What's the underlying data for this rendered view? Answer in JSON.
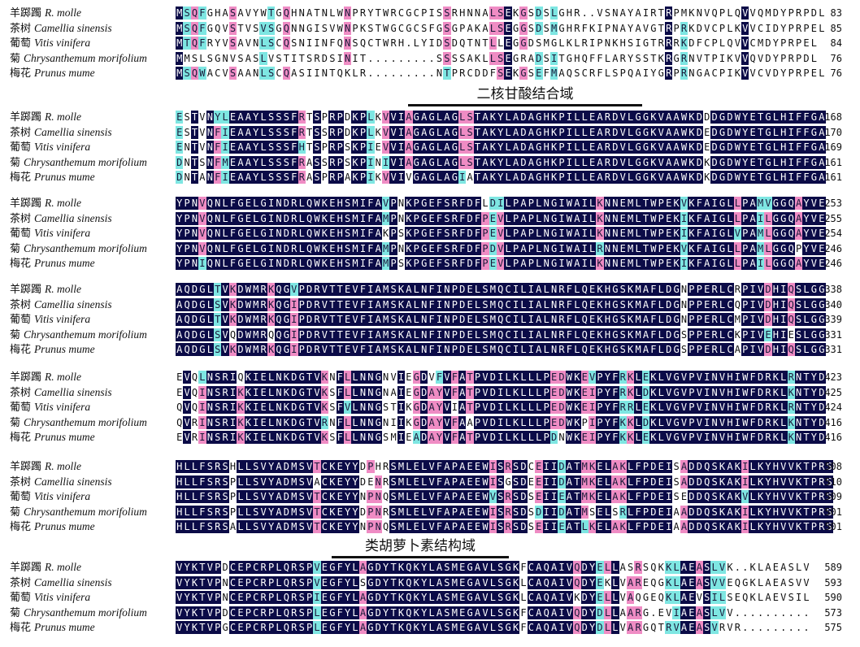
{
  "species": [
    {
      "zh": "羊踯躅",
      "latin": "R. molle"
    },
    {
      "zh": "茶树",
      "latin": "Camellia sinensis"
    },
    {
      "zh": "葡萄",
      "latin": "Vitis vinifera"
    },
    {
      "zh": "菊",
      "latin": "Chrysanthemum morifolium"
    },
    {
      "zh": "梅花",
      "latin": "Prunus mume"
    }
  ],
  "colors": {
    "identical": "#0b0b47",
    "partial": "#ef8cc4",
    "similar": "#7ee6e2"
  },
  "domains": [
    {
      "label": "二核甘酸结合域",
      "after_block": 0
    },
    {
      "label": "类胡萝卜素结构域",
      "after_block": 5
    }
  ],
  "blocks": [
    {
      "rows": [
        {
          "seq": "MSQFGHASAVYWTGQHNATNLWNPRYTWRCGCPISSRHNNALSEKGSDSLGHR..VSNAYAIRTRPMKNVQPLQVVQMDYPRPDL",
          "end": "83"
        },
        {
          "seq": "MSQFGQVSTVSVSGQNNGISVWNPKSTWGCGCSFGSGPAKALSEGGSDSMGHRFKIPNAYAVGTRPRKDVCPLKVVCIDYPRPEL",
          "end": "85"
        },
        {
          "seq": "MTQFRYVSAVNLSCQSNIINFQNSQCTWRH.LYIDSDQTNTLLEGGDSMGLKLRIPNKHSIGTRRRKDFCPLQVVCMDYPRPEL",
          "end": "84"
        },
        {
          "seq": "MMSLSGNVSASLVSTITSRDSINIT.........SSSSAKLLSEGRADSITGHQFFLARYSSTKRGRNVTPIKVVQVDYPRPDL",
          "end": "76"
        },
        {
          "seq": "MSQWACVSAANLSCQASIINTQKLR.........NTPRCDDFSEKGSEFMAQSCRFLSPQAIYGRPRNGACPIKVVCVDYPRPEL",
          "end": "76"
        }
      ]
    },
    {
      "rows": [
        {
          "seq": "ESTVNYLEAAYLSSSFRTSPRPDKPLKVVIAGAGLAGLSTAKYLADAGHKPILLEARDVLGGKVAAWKDDDGDWYETGLHIFFGA",
          "end": "168"
        },
        {
          "seq": "ESTVNFIEAAYLSSSFRTSSRPDKPLKVVIAGAGLAGLSTAKYLADAGHKPILLEARDVLGGKVAAWKDEDGDWYETGLHIFFGA",
          "end": "170"
        },
        {
          "seq": "ENTVNFIEAAYLSSSFHTSPRPSKPIEVVIAGAGLAGLSTAKYLADAGHKPILLEARDVLGGKVAAWKDEDGDWYETGLHIFFGA",
          "end": "169"
        },
        {
          "seq": "DNTSNFMEAAYLSSSFRASSRPSKPINIVIAGAGLAGLSTAKYLADAGHKPILLEARDVLGGKVAAWKDKDGDWYETGLHIFFGA",
          "end": "161"
        },
        {
          "seq": "DNTANFIEAAYLSSSFRASPRPAKPIKVVIVGAGLAGIATAKYLADAGHKPILLEARDVLGGKVAAWKDKDGDWYETGLHIFFGA",
          "end": "161"
        }
      ]
    },
    {
      "rows": [
        {
          "seq": "YPNVQNLFGELGINDRLQWKEHSMIFAVPNKPGEFSRFDFLDILPAPLNGIWAILKNNEMLTWPEKVKFAIGLLPAMVGGQAYVE",
          "end": "253"
        },
        {
          "seq": "YPNVQNLFGELGINDRLQWKEHSMIFAMPNKPGEFSRFDFPEVLPAPLNGIWAILKNNEMLTWPEKIKFAIGLLPAILGGQAYVE",
          "end": "255"
        },
        {
          "seq": "YPNVQNLFGELGINDRLQWKEHSMIFAKPSKPGEFSRFDFPEVLPAPLNGIWAILKNNEMLTWPEKIKFAIGLVPAMLGGQAYVE",
          "end": "254"
        },
        {
          "seq": "YPNVQNLFGELGINDRLQWKEHSMIFAMPNKPGEFSRFDFPDVLPAPLNGIWAILRNNEMLTWPEKVKFAIGLLPAMLGGQPYVE",
          "end": "246"
        },
        {
          "seq": "YPNIQNLFGELGINDRLQWKEHSMIFAMPSKPGEFSRFDFPEVLPAPLNGIWAILKNNEMLTWPEKIKFAIGLLPAILGGQAYVE",
          "end": "246"
        }
      ]
    },
    {
      "rows": [
        {
          "seq": "AQDGLTVKDWMRKQGVPDRVTTEVFIAMSKALNFINPDELSMQCILIALNRFLQEKHGSKMAFLDGNPPERLCRPIVDHIQSLGG",
          "end": "338"
        },
        {
          "seq": "AQDGLSVKDWMRKQGIPDRVTTEVFIAMSKALNFINPDELSMQCILIALNRFLQEKHGSKMAFLDGNPPERLCQPIVDHIQSLGG",
          "end": "340"
        },
        {
          "seq": "AQDGLTVKDWMRKQGIPDRVTTEVFIAMSKALNFINPDELSMQCILIALNRFLQEKHGSKMAFLDGNPPERLCMPIVDHIQSLGG",
          "end": "339"
        },
        {
          "seq": "AQDGLSVQDWMRQQGIPDRVTTEVFIAMSKALNFINPDELSMQCILIALNRFLQEKHGSKMAFLDGSPPERLCKPIVEHIESLGG",
          "end": "331"
        },
        {
          "seq": "AQDGLSVKDWMRKQGIPDRVTTEVFIAMSKALNFINPDELSMQCILIALNRFLQEKHGSKMAFLDGSPPERLCAPIVDHIQSLGG",
          "end": "331"
        }
      ]
    },
    {
      "rows": [
        {
          "seq": "EVQLNSRIQKIELNKDGTVKNFLLNNGNVIEGDVFVFATPVDILKLLLPEDWKEVPYFRKLEKLVGVPVINVHIWFDRKLRNTYD",
          "end": "423"
        },
        {
          "seq": "EVQINSRIKKIELNKDGTVKSFLLNNGNAIEGDAYVFATPVDILKLLLPEDWKEIPYFRKLDKLVGVPVINVHIWFDRKLKNTYD",
          "end": "425"
        },
        {
          "seq": "QVQINSRIKKIELNKDGTVKSFVLNNGSTIKGDAYVIATPVDILKLLLPEDWKEIPYFRRLEKLVGVPVINVHIWFDRKLRNTYD",
          "end": "424"
        },
        {
          "seq": "QVRINSRIKKIELNKDGTVRNFLLNNGNIIKGDAYVFAAPVDILKLLLPEDWKPIPYFKKLDKLVGVPVINVHIWFDRKLKNTYD",
          "end": "416"
        },
        {
          "seq": "EVRINSRIKKIELNKDGTVKSFLLNNGSMIEADAYVFATPVDILKLLLPDNWKEIPYFKKLEKLVGVPVINVHIWFDRKLKNTYD",
          "end": "416"
        }
      ]
    },
    {
      "rows": [
        {
          "seq": "HLLFSRSHLLSVYADMSVTCKEYYDPHRSMLELVFAPAEEWISRSDCEIIDATMKELAKLFPDEISADDQSKAKILKYHVVKTPRS",
          "end": "508"
        },
        {
          "seq": "HLLFSRSPLLSVYADMSVACKEYYDENRSMLELVFAPAEEWISGSDEEIIDATMKELAKLFPDEISADDQSKAKILKYHVVKTPRS",
          "end": "510"
        },
        {
          "seq": "HLLFSRSPLLSVYADMSVTCKEYYNPNQSMLELVFAPAEEWVSRSDSEIIEATMKELAKLFPDEISEDDQSKAKVLKYHVVKTPRS",
          "end": "509"
        },
        {
          "seq": "HLLFSRSPLLSVYADMSVTCKEYYDPNRSMLELVFAPAEEWISRSDSDIIDATMSELSRLFPDEIAADDQSKAKILKYHVVKTPRS",
          "end": "501"
        },
        {
          "seq": "HLLFSRSALLSVYADMSVTCKEYYNPNQSMLELVFAPAEEWISRSDSEIIEATLKELAKLFPDEIAADDQSKAKILKYHVVKTPRS",
          "end": "501"
        }
      ]
    },
    {
      "rows": [
        {
          "seq": "VYKTVPDCEPCRPLQRSPVEGFYLAGDYTKQKYLASMEGAVLSGKFCAQAIVQDYELLASRSQKKLAEASLVK..KLAEASLV",
          "end": "589"
        },
        {
          "seq": "VYKTVPNCEPCRPLQRSPVEGFYLSGDYTKQKYLASMEGAVLSGKLCAQAIVQDYEKLVAREQGKLAEASVVEQGKLAEASVV",
          "end": "593"
        },
        {
          "seq": "VYKTVPNCEPCRPLQRSPIEGFYLAGDYTKQKYLASMEGAVLSGKLCAQAIVKDYELLVAQGEQKLAEVSILSEQKLAEVSIL",
          "end": "590"
        },
        {
          "seq": "VYKTVPDCEPCRPLQRSPLEGFYLAGDYTKQKYLASMEGAVLSGKFCAQAIVQDYDLLAARG.EVIAEASLVV..........",
          "end": "573"
        },
        {
          "seq": "VYKTVPGCEPCRPLQRSPLEGFYLAGDYTKQKYLASMEGAVLSGKFCAQAIVQDYDLLVARGQTRVAEASVRVR.........",
          "end": "575"
        }
      ]
    }
  ]
}
